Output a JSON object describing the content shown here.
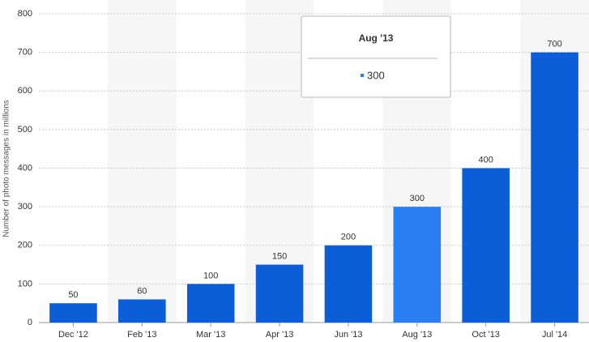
{
  "chart_data": {
    "type": "bar",
    "y_label": "Number of photo messages in millions",
    "categories": [
      "Dec '12",
      "Feb '13",
      "Mar '13",
      "Apr '13",
      "Jun '13",
      "Aug '13",
      "Oct '13",
      "Jul '14"
    ],
    "values": [
      50,
      60,
      100,
      150,
      200,
      300,
      400,
      700
    ],
    "color": "#0b5ed7",
    "highlight_color": "#2a7ff5",
    "highlighted_index": 5,
    "ylim": [
      0,
      800
    ],
    "yticks": [
      0,
      100,
      200,
      300,
      400,
      500,
      600,
      700,
      800
    ],
    "grid": true,
    "value_labels_shown": true
  }
}
